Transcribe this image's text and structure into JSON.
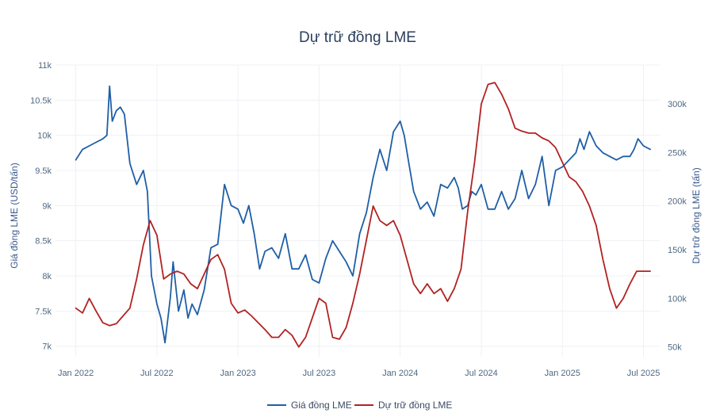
{
  "chart_data": {
    "type": "line",
    "title": "Dự trữ đồng LME",
    "x_tick_labels": [
      "Jan 2022",
      "Jul 2022",
      "Jan 2023",
      "Jul 2023",
      "Jan 2024",
      "Jul 2024",
      "Jan 2025",
      "Jul 2025"
    ],
    "x_range_months": [
      -1.5,
      43.2
    ],
    "left_axis": {
      "title": "Giá đồng LME (USD/tấn)",
      "range": [
        6850,
        11000
      ],
      "ticks": [
        7000,
        7500,
        8000,
        8500,
        9000,
        9500,
        10000,
        10500,
        11000
      ],
      "tick_labels": [
        "7k",
        "7.5k",
        "8k",
        "8.5k",
        "9k",
        "9.5k",
        "10k",
        "10.5k",
        "11k"
      ]
    },
    "right_axis": {
      "title": "Dự trữ đồng LME (tấn)",
      "range": [
        40000,
        340000
      ],
      "ticks": [
        50000,
        100000,
        150000,
        200000,
        250000,
        300000
      ],
      "tick_labels": [
        "50k",
        "100k",
        "150k",
        "200k",
        "250k",
        "300k"
      ]
    },
    "series": [
      {
        "name": "Giá đồng LME",
        "axis": "left",
        "color": "#1f5fa6",
        "x": [
          0,
          0.5,
          1,
          1.5,
          2,
          2.3,
          2.5,
          2.7,
          3,
          3.3,
          3.6,
          4,
          4.5,
          5,
          5.3,
          5.6,
          6,
          6.3,
          6.6,
          7,
          7.2,
          7.6,
          8,
          8.3,
          8.6,
          9,
          9.5,
          10,
          10.5,
          11,
          11.5,
          12,
          12.4,
          12.8,
          13.2,
          13.6,
          14,
          14.5,
          15,
          15.5,
          16,
          16.5,
          17,
          17.5,
          18,
          18.5,
          19,
          19.5,
          20,
          20.5,
          21,
          21.5,
          22,
          22.5,
          23,
          23.5,
          24,
          24.3,
          24.6,
          25,
          25.5,
          26,
          26.5,
          27,
          27.5,
          28,
          28.3,
          28.6,
          29,
          29.3,
          29.6,
          30,
          30.5,
          31,
          31.5,
          32,
          32.5,
          33,
          33.5,
          34,
          34.5,
          35,
          35.5,
          36,
          36.5,
          37,
          37.3,
          37.6,
          38,
          38.5,
          39,
          39.5,
          40,
          40.5,
          41,
          41.3,
          41.6,
          42,
          42.5
        ],
        "values": [
          9650,
          9800,
          9850,
          9900,
          9950,
          10000,
          10700,
          10200,
          10350,
          10400,
          10300,
          9600,
          9300,
          9500,
          9200,
          8000,
          7600,
          7400,
          7050,
          7700,
          8200,
          7500,
          7800,
          7400,
          7600,
          7450,
          7800,
          8400,
          8450,
          9300,
          9000,
          8950,
          8750,
          9000,
          8600,
          8100,
          8350,
          8400,
          8250,
          8600,
          8100,
          8100,
          8300,
          7950,
          7900,
          8250,
          8500,
          8350,
          8200,
          8000,
          8600,
          8900,
          9400,
          9800,
          9500,
          10050,
          10200,
          10000,
          9650,
          9200,
          8950,
          9050,
          8850,
          9300,
          9250,
          9400,
          9250,
          8950,
          9000,
          9200,
          9150,
          9300,
          8950,
          8950,
          9200,
          8950,
          9100,
          9500,
          9100,
          9300,
          9700,
          9000,
          9500,
          9550,
          9650,
          9750,
          9950,
          9800,
          10050,
          9850,
          9750,
          9700,
          9650,
          9700,
          9700,
          9800,
          9950,
          9850,
          9800
        ]
      },
      {
        "name": "Dự trữ đồng LME",
        "axis": "right",
        "color": "#b22222",
        "x": [
          0,
          0.5,
          1,
          1.5,
          2,
          2.5,
          3,
          3.5,
          4,
          4.5,
          5,
          5.5,
          6,
          6.5,
          7,
          7.5,
          8,
          8.5,
          9,
          9.5,
          10,
          10.5,
          11,
          11.5,
          12,
          12.5,
          13,
          13.5,
          14,
          14.5,
          15,
          15.5,
          16,
          16.5,
          17,
          17.5,
          18,
          18.5,
          19,
          19.5,
          20,
          20.5,
          21,
          21.5,
          22,
          22.5,
          23,
          23.5,
          24,
          24.5,
          25,
          25.5,
          26,
          26.5,
          27,
          27.5,
          28,
          28.5,
          29,
          29.5,
          30,
          30.5,
          31,
          31.5,
          32,
          32.5,
          33,
          33.5,
          34,
          34.5,
          35,
          35.5,
          36,
          36.5,
          37,
          37.5,
          38,
          38.5,
          39,
          39.5,
          40,
          40.5,
          41,
          41.5,
          42,
          42.5
        ],
        "values": [
          90000,
          85000,
          100000,
          87000,
          75000,
          72000,
          74000,
          82000,
          90000,
          120000,
          155000,
          180000,
          165000,
          120000,
          125000,
          128000,
          125000,
          115000,
          110000,
          125000,
          140000,
          145000,
          130000,
          95000,
          85000,
          88000,
          82000,
          75000,
          68000,
          60000,
          60000,
          68000,
          62000,
          50000,
          60000,
          80000,
          100000,
          95000,
          60000,
          58000,
          70000,
          95000,
          125000,
          160000,
          195000,
          180000,
          175000,
          180000,
          165000,
          140000,
          115000,
          105000,
          115000,
          105000,
          110000,
          97000,
          110000,
          130000,
          190000,
          240000,
          300000,
          320000,
          322000,
          310000,
          295000,
          275000,
          272000,
          270000,
          270000,
          265000,
          262000,
          255000,
          240000,
          225000,
          220000,
          210000,
          195000,
          175000,
          140000,
          110000,
          90000,
          100000,
          115000,
          128000,
          128000,
          128000
        ]
      }
    ],
    "legend": [
      "Giá đồng LME",
      "Dự trữ đồng LME"
    ],
    "legend_position": "bottom-center"
  }
}
